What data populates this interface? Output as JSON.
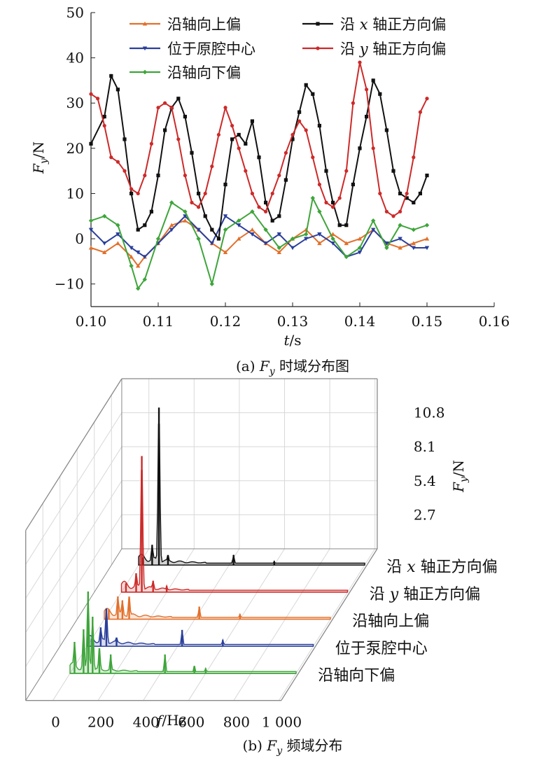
{
  "chart_data": [
    {
      "type": "line",
      "caption_prefix": "(a) ",
      "caption_var": "F",
      "caption_sub": "y",
      "caption_text": " 时域分布图",
      "xlabel_var": "t",
      "xlabel_unit": "/s",
      "ylabel_var": "F",
      "ylabel_sub": "y",
      "ylabel_unit": "/N",
      "xlim": [
        0.1,
        0.16
      ],
      "ylim": [
        -15,
        50
      ],
      "xticks": [
        "0.10",
        "0.11",
        "0.12",
        "0.13",
        "0.14",
        "0.15",
        "0.16"
      ],
      "yticks": [
        "−10",
        "0",
        "10",
        "20",
        "30",
        "40",
        "50"
      ],
      "legend_position": "top",
      "series": [
        {
          "name": "沿轴向上偏",
          "name_var": "",
          "name_tail": "",
          "color": "#e2702b",
          "marker": "triangle",
          "x": [
            0.1,
            0.102,
            0.104,
            0.106,
            0.107,
            0.108,
            0.11,
            0.112,
            0.114,
            0.116,
            0.118,
            0.12,
            0.122,
            0.124,
            0.126,
            0.128,
            0.13,
            0.132,
            0.134,
            0.136,
            0.138,
            0.14,
            0.142,
            0.144,
            0.146,
            0.148,
            0.15
          ],
          "y": [
            -2,
            -3,
            -1,
            -4,
            -6,
            -4,
            -1,
            3,
            4,
            2,
            -1,
            -3,
            0,
            2,
            -1,
            -3,
            0,
            2,
            -1,
            1,
            -1,
            0,
            2,
            -1,
            -2,
            -1,
            0
          ]
        },
        {
          "name": "位于原腔中心",
          "name_var": "",
          "name_tail": "",
          "color": "#2a3f9b",
          "marker": "triangle-down",
          "x": [
            0.1,
            0.102,
            0.104,
            0.106,
            0.107,
            0.108,
            0.11,
            0.112,
            0.114,
            0.116,
            0.118,
            0.12,
            0.122,
            0.124,
            0.126,
            0.128,
            0.13,
            0.132,
            0.134,
            0.136,
            0.138,
            0.14,
            0.142,
            0.144,
            0.146,
            0.148,
            0.15
          ],
          "y": [
            2,
            -1,
            1,
            -2,
            -3,
            -4,
            -1,
            2,
            5,
            2,
            -1,
            5,
            3,
            1,
            -1,
            1,
            -2,
            0,
            1,
            -1,
            -4,
            -3,
            2,
            -1,
            0,
            -2,
            -2
          ]
        },
        {
          "name": "沿轴向下偏",
          "name_var": "",
          "name_tail": "",
          "color": "#3ea53a",
          "marker": "diamond",
          "x": [
            0.1,
            0.102,
            0.104,
            0.106,
            0.107,
            0.108,
            0.11,
            0.112,
            0.114,
            0.116,
            0.118,
            0.12,
            0.122,
            0.124,
            0.126,
            0.128,
            0.13,
            0.132,
            0.133,
            0.134,
            0.136,
            0.138,
            0.14,
            0.142,
            0.144,
            0.146,
            0.148,
            0.15
          ],
          "y": [
            4,
            5,
            3,
            -6,
            -11,
            -9,
            0,
            8,
            6,
            0,
            -10,
            2,
            4,
            6,
            2,
            -2,
            0,
            1,
            9,
            6,
            0,
            -4,
            -2,
            4,
            -2,
            3,
            2,
            3
          ]
        },
        {
          "name": "沿 ",
          "name_var": "x",
          "name_tail": " 轴正方向偏",
          "color": "#111111",
          "marker": "square",
          "x": [
            0.1,
            0.102,
            0.103,
            0.104,
            0.105,
            0.106,
            0.107,
            0.108,
            0.109,
            0.11,
            0.111,
            0.112,
            0.113,
            0.114,
            0.115,
            0.116,
            0.117,
            0.118,
            0.119,
            0.12,
            0.121,
            0.122,
            0.123,
            0.124,
            0.125,
            0.126,
            0.127,
            0.128,
            0.129,
            0.13,
            0.131,
            0.132,
            0.133,
            0.134,
            0.135,
            0.136,
            0.137,
            0.138,
            0.139,
            0.14,
            0.141,
            0.142,
            0.143,
            0.144,
            0.145,
            0.146,
            0.147,
            0.148,
            0.149,
            0.15
          ],
          "y": [
            21,
            27,
            36,
            33,
            22,
            10,
            2,
            3,
            6,
            14,
            24,
            29,
            31,
            27,
            19,
            10,
            5,
            2,
            0,
            12,
            22,
            23,
            21,
            26,
            18,
            8,
            4,
            5,
            13,
            22,
            28,
            34,
            32,
            25,
            15,
            8,
            3,
            3,
            12,
            20,
            27,
            35,
            32,
            24,
            15,
            10,
            9,
            8,
            10,
            14
          ]
        },
        {
          "name": "沿 ",
          "name_var": "y",
          "name_tail": " 轴正方向偏",
          "color": "#cc2a29",
          "marker": "circle",
          "x": [
            0.1,
            0.101,
            0.102,
            0.103,
            0.104,
            0.105,
            0.106,
            0.107,
            0.108,
            0.109,
            0.11,
            0.111,
            0.112,
            0.113,
            0.114,
            0.115,
            0.116,
            0.117,
            0.118,
            0.119,
            0.12,
            0.121,
            0.122,
            0.123,
            0.124,
            0.125,
            0.126,
            0.127,
            0.128,
            0.129,
            0.13,
            0.131,
            0.132,
            0.133,
            0.134,
            0.135,
            0.136,
            0.137,
            0.138,
            0.139,
            0.14,
            0.141,
            0.142,
            0.143,
            0.144,
            0.145,
            0.146,
            0.147,
            0.148,
            0.149,
            0.15
          ],
          "y": [
            32,
            31,
            25,
            18,
            17,
            15,
            11,
            10,
            14,
            21,
            29,
            30,
            29,
            22,
            14,
            8,
            7,
            10,
            16,
            23,
            29,
            25,
            20,
            15,
            10,
            7,
            6,
            10,
            14,
            19,
            23,
            26,
            24,
            18,
            12,
            8,
            7,
            9,
            15,
            30,
            39,
            33,
            20,
            10,
            6,
            5,
            6,
            10,
            18,
            28,
            31
          ]
        }
      ]
    },
    {
      "type": "area",
      "view": "3d-waterfall",
      "caption_prefix": "(b) ",
      "caption_var": "F",
      "caption_sub": "y",
      "caption_text": " 频域分布",
      "xlabel_var": "f",
      "xlabel_unit": "/Hz",
      "zlabel_var": "F",
      "zlabel_sub": "y",
      "zlabel_unit": "/N",
      "xlim": [
        0,
        1000
      ],
      "zlim": [
        0,
        13.5
      ],
      "xticks": [
        "0",
        "200",
        "400",
        "600",
        "800",
        "1 000"
      ],
      "zticks": [
        "2.7",
        "5.4",
        "8.1",
        "10.8"
      ],
      "series": [
        {
          "name": "沿轴向下偏",
          "name_var": "",
          "name_tail": "",
          "color": "#3ea53a",
          "peaks": [
            [
              20,
              2.5
            ],
            [
              60,
              3.5
            ],
            [
              80,
              6.5
            ],
            [
              100,
              4.5
            ],
            [
              130,
              2.0
            ],
            [
              180,
              1.5
            ],
            [
              420,
              1.5
            ],
            [
              550,
              0.6
            ],
            [
              600,
              0.4
            ]
          ]
        },
        {
          "name": "位于泵腔中心",
          "name_var": "",
          "name_tail": "",
          "color": "#2a3f9b",
          "peaks": [
            [
              20,
              0.6
            ],
            [
              60,
              1.5
            ],
            [
              85,
              3.0
            ],
            [
              130,
              0.7
            ],
            [
              420,
              1.3
            ],
            [
              600,
              0.5
            ]
          ]
        },
        {
          "name": "沿轴向上偏",
          "name_var": "",
          "name_tail": "",
          "color": "#e2702b",
          "peaks": [
            [
              20,
              0.8
            ],
            [
              60,
              1.8
            ],
            [
              80,
              1.5
            ],
            [
              110,
              1.8
            ],
            [
              420,
              1.0
            ],
            [
              600,
              0.4
            ]
          ]
        },
        {
          "name": "沿 ",
          "name_var": "y",
          "name_tail": " 轴正方向偏",
          "color": "#cc2a29",
          "peaks": [
            [
              20,
              0.7
            ],
            [
              65,
              1.5
            ],
            [
              90,
              10.8
            ],
            [
              140,
              0.9
            ],
            [
              200,
              0.5
            ]
          ]
        },
        {
          "name": "沿 ",
          "name_var": "x",
          "name_tail": " 轴正方向偏",
          "color": "#111111",
          "peaks": [
            [
              20,
              0.6
            ],
            [
              60,
              1.6
            ],
            [
              90,
              12.5
            ],
            [
              130,
              0.8
            ],
            [
              420,
              0.8
            ],
            [
              600,
              0.3
            ]
          ]
        }
      ]
    }
  ]
}
